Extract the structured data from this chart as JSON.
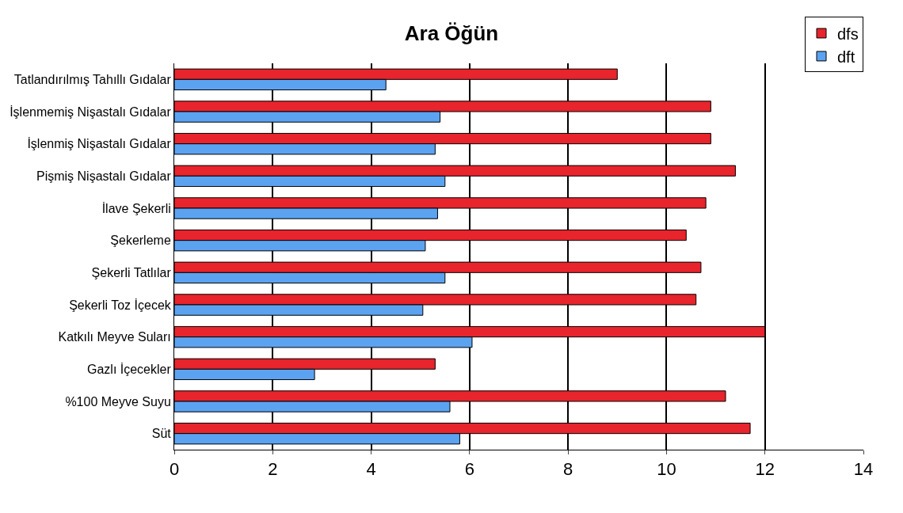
{
  "chart_data": {
    "type": "bar",
    "orientation": "horizontal",
    "title": "Ara Öğün",
    "categories": [
      "Tatlandırılmış Tahıllı Gıdalar",
      "İşlenmemiş Nişastalı Gıdalar",
      "İşlenmiş Nişastalı Gıdalar",
      "Pişmiş Nişastalı Gıdalar",
      "İlave Şekerli",
      "Şekerleme",
      "Şekerli Tatlılar",
      "Şekerli Toz İçecek",
      "Katkılı Meyve Suları",
      "Gazlı İçecekler",
      "%100 Meyve Suyu",
      "Süt"
    ],
    "series": [
      {
        "name": "dfs",
        "color": "#e8242c",
        "values": [
          9.0,
          10.9,
          10.9,
          11.4,
          10.8,
          10.4,
          10.7,
          10.6,
          12.0,
          5.3,
          11.2,
          11.7
        ]
      },
      {
        "name": "dft",
        "color": "#5ba3f0",
        "values": [
          4.3,
          5.4,
          5.3,
          5.5,
          5.35,
          5.1,
          5.5,
          5.05,
          6.05,
          2.85,
          5.6,
          5.8
        ]
      }
    ],
    "xlim": [
      0,
      14
    ],
    "xticks": [
      0,
      2,
      4,
      6,
      8,
      10,
      12,
      14
    ],
    "grid": "x",
    "legend": "top right"
  }
}
